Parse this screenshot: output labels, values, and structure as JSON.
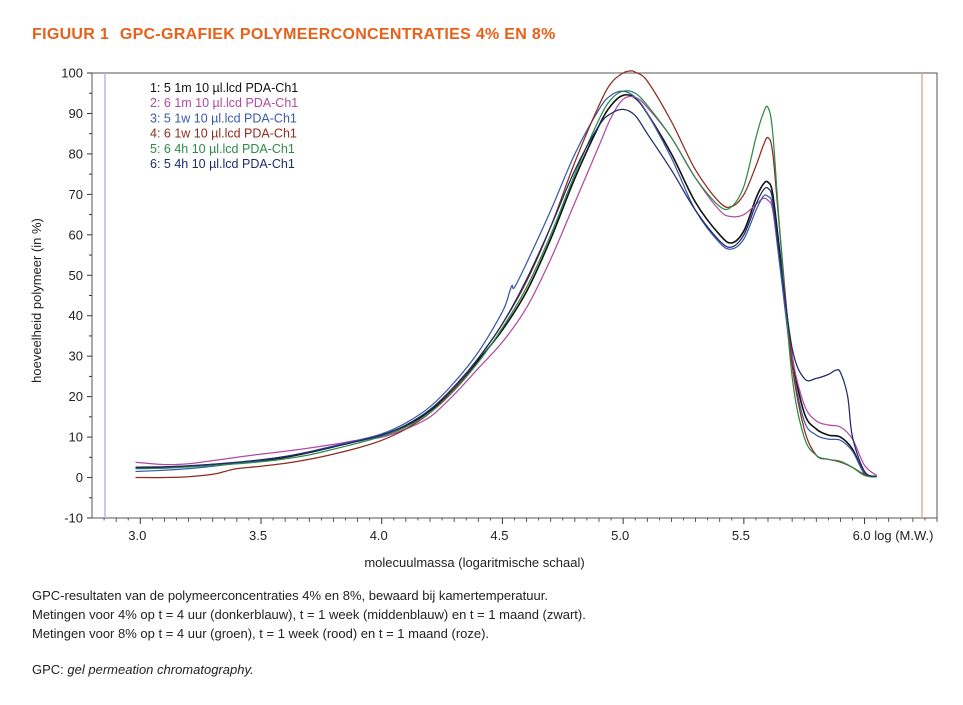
{
  "figure": {
    "number": "FIGUUR 1",
    "title": "GPC-GRAFIEK POLYMEERCONCENTRATIES 4% EN 8%",
    "title_color": "#e8611a"
  },
  "caption": {
    "lines": [
      "GPC-resultaten van de polymeerconcentraties 4% en 8%, bewaard bij kamertemperatuur.",
      "Metingen voor 4% op t = 4 uur (donkerblauw), t = 1 week (middenblauw) en t = 1 maand (zwart).",
      "Metingen voor 8% op t = 4 uur (groen), t = 1 week (rood) en t = 1 maand (roze)."
    ],
    "abbrev_prefix": "GPC: ",
    "abbrev_term": "gel permeation chromatography."
  },
  "chart_data": {
    "type": "line",
    "xlabel": "molecuulmassa (logaritmische schaal)",
    "ylabel": "hoeveelheid polymeer (in %)",
    "xlim": [
      2.8,
      6.3
    ],
    "ylim": [
      -10,
      100
    ],
    "xticks": [
      3.0,
      3.5,
      4.0,
      4.5,
      5.0,
      5.5,
      6.0
    ],
    "xtick_labels": [
      "3.0",
      "3.5",
      "4.0",
      "4.5",
      "5.0",
      "5.5",
      "6.0 log (M.W.)"
    ],
    "yticks": [
      -10,
      0,
      10,
      20,
      30,
      40,
      50,
      60,
      70,
      80,
      90,
      100
    ],
    "ytick_labels": [
      "-10",
      "0",
      "10",
      "20",
      "30",
      "40",
      "50",
      "60",
      "70",
      "80",
      "90",
      "100"
    ],
    "grid": false,
    "legend_position": "top-left",
    "series": [
      {
        "name": "1: 5  1m 10 µl.lcd PDA-Ch1",
        "color": "#111111",
        "x": [
          2.98,
          3.1,
          3.2,
          3.3,
          3.4,
          3.5,
          3.6,
          3.7,
          3.8,
          3.9,
          4.0,
          4.1,
          4.2,
          4.3,
          4.4,
          4.5,
          4.6,
          4.7,
          4.8,
          4.9,
          4.95,
          5.0,
          5.05,
          5.1,
          5.2,
          5.3,
          5.4,
          5.45,
          5.5,
          5.55,
          5.58,
          5.6,
          5.62,
          5.65,
          5.7,
          5.75,
          5.8,
          5.85,
          5.9,
          5.95,
          6.0,
          6.05
        ],
        "y": [
          2.5,
          2.6,
          2.8,
          3.2,
          3.6,
          4.2,
          5.0,
          6.2,
          7.6,
          9.0,
          10.5,
          12.8,
          16.5,
          22.0,
          29.0,
          36.5,
          46.0,
          59.0,
          74.0,
          87.0,
          92.0,
          94.5,
          93.8,
          90.0,
          80.0,
          68.0,
          60.0,
          58.0,
          61.0,
          69.0,
          72.5,
          73.0,
          70.0,
          55.0,
          30.0,
          16.0,
          12.0,
          10.5,
          10.0,
          7.0,
          1.0,
          0.2
        ]
      },
      {
        "name": "2: 6  1m 10 µl.lcd PDA-Ch1",
        "color": "#b04aa3",
        "x": [
          2.98,
          3.1,
          3.2,
          3.3,
          3.4,
          3.5,
          3.6,
          3.7,
          3.8,
          3.9,
          4.0,
          4.1,
          4.2,
          4.3,
          4.4,
          4.5,
          4.6,
          4.7,
          4.8,
          4.9,
          4.95,
          5.0,
          5.05,
          5.1,
          5.2,
          5.3,
          5.4,
          5.45,
          5.5,
          5.55,
          5.58,
          5.6,
          5.62,
          5.65,
          5.7,
          5.75,
          5.8,
          5.85,
          5.9,
          5.95,
          6.0,
          6.05
        ],
        "y": [
          3.8,
          3.2,
          3.4,
          4.2,
          5.0,
          5.8,
          6.5,
          7.3,
          8.2,
          9.2,
          10.0,
          12.0,
          15.0,
          20.5,
          27.0,
          33.5,
          42.0,
          54.0,
          68.0,
          82.0,
          89.0,
          93.5,
          94.0,
          91.5,
          84.0,
          74.0,
          66.0,
          64.5,
          65.0,
          67.5,
          69.0,
          68.5,
          66.0,
          52.0,
          30.0,
          18.0,
          14.0,
          13.0,
          12.5,
          9.5,
          3.0,
          0.5
        ]
      },
      {
        "name": "3: 5  1w 10 µl.lcd PDA-Ch1",
        "color": "#3a5aa8",
        "x": [
          2.98,
          3.1,
          3.2,
          3.3,
          3.4,
          3.5,
          3.6,
          3.7,
          3.8,
          3.9,
          4.0,
          4.1,
          4.2,
          4.3,
          4.4,
          4.5,
          4.53,
          4.54,
          4.55,
          4.6,
          4.7,
          4.8,
          4.9,
          4.95,
          5.0,
          5.05,
          5.1,
          5.2,
          5.3,
          5.4,
          5.45,
          5.5,
          5.55,
          5.58,
          5.6,
          5.62,
          5.65,
          5.7,
          5.75,
          5.8,
          5.85,
          5.9,
          5.95,
          6.0,
          6.05
        ],
        "y": [
          1.5,
          1.8,
          2.2,
          2.8,
          3.5,
          4.3,
          5.2,
          6.4,
          7.8,
          9.2,
          10.8,
          13.5,
          17.5,
          23.5,
          31.0,
          41.0,
          46.0,
          47.5,
          47.0,
          53.0,
          66.0,
          80.0,
          91.0,
          94.5,
          95.5,
          94.0,
          90.0,
          79.0,
          66.0,
          58.0,
          56.5,
          59.0,
          66.0,
          69.5,
          69.5,
          67.0,
          52.0,
          28.0,
          14.0,
          10.5,
          9.5,
          9.2,
          6.5,
          1.0,
          0.2
        ]
      },
      {
        "name": "4: 6  1w 10 µl.lcd PDA-Ch1",
        "color": "#8e2b1e",
        "x": [
          2.98,
          3.1,
          3.2,
          3.3,
          3.35,
          3.4,
          3.5,
          3.6,
          3.7,
          3.8,
          3.9,
          4.0,
          4.1,
          4.2,
          4.3,
          4.4,
          4.5,
          4.6,
          4.7,
          4.8,
          4.9,
          4.95,
          5.0,
          5.03,
          5.05,
          5.1,
          5.2,
          5.3,
          5.4,
          5.45,
          5.5,
          5.55,
          5.58,
          5.6,
          5.62,
          5.65,
          5.7,
          5.75,
          5.8,
          5.85,
          5.9,
          5.95,
          6.0,
          6.05
        ],
        "y": [
          0.0,
          0.0,
          0.2,
          0.8,
          1.5,
          2.2,
          2.8,
          3.5,
          4.5,
          5.8,
          7.3,
          9.2,
          12.0,
          16.0,
          22.0,
          29.5,
          38.0,
          48.5,
          62.0,
          78.0,
          92.0,
          97.5,
          100.0,
          100.5,
          100.2,
          98.0,
          88.0,
          76.0,
          68.0,
          67.0,
          70.0,
          77.0,
          82.0,
          84.0,
          80.0,
          60.0,
          28.0,
          12.0,
          5.5,
          4.5,
          3.8,
          2.5,
          0.8,
          0.2
        ]
      },
      {
        "name": "5: 6  4h  10 µl.lcd PDA-Ch1",
        "color": "#2e8a4a",
        "x": [
          2.98,
          3.1,
          3.2,
          3.3,
          3.4,
          3.5,
          3.6,
          3.7,
          3.8,
          3.9,
          4.0,
          4.1,
          4.2,
          4.3,
          4.4,
          4.5,
          4.6,
          4.7,
          4.8,
          4.9,
          4.95,
          5.0,
          5.05,
          5.1,
          5.2,
          5.3,
          5.4,
          5.45,
          5.5,
          5.55,
          5.58,
          5.6,
          5.62,
          5.65,
          5.7,
          5.75,
          5.8,
          5.85,
          5.9,
          5.95,
          6.0,
          6.05
        ],
        "y": [
          2.2,
          2.3,
          2.6,
          3.0,
          3.4,
          3.9,
          4.6,
          5.6,
          7.0,
          8.5,
          10.2,
          12.5,
          16.0,
          21.5,
          28.5,
          37.0,
          47.0,
          60.0,
          75.0,
          88.5,
          93.5,
          95.5,
          95.0,
          92.0,
          84.0,
          74.0,
          67.0,
          67.0,
          72.0,
          84.0,
          90.0,
          91.5,
          85.0,
          60.0,
          25.0,
          10.0,
          5.5,
          4.5,
          4.0,
          2.5,
          0.5,
          0.2
        ]
      },
      {
        "name": "6: 5  4h  10 µl.lcd PDA-Ch1",
        "color": "#1f2a6b",
        "x": [
          2.98,
          3.1,
          3.2,
          3.3,
          3.4,
          3.5,
          3.6,
          3.7,
          3.8,
          3.9,
          4.0,
          4.1,
          4.2,
          4.3,
          4.4,
          4.5,
          4.6,
          4.7,
          4.8,
          4.9,
          4.95,
          5.0,
          5.05,
          5.1,
          5.2,
          5.3,
          5.4,
          5.45,
          5.5,
          5.55,
          5.58,
          5.6,
          5.62,
          5.65,
          5.7,
          5.75,
          5.8,
          5.85,
          5.88,
          5.9,
          5.93,
          5.95,
          6.0,
          6.05
        ],
        "y": [
          2.4,
          2.6,
          2.9,
          3.3,
          3.8,
          4.4,
          5.2,
          6.3,
          7.6,
          9.0,
          10.5,
          13.0,
          16.8,
          22.5,
          29.5,
          38.0,
          49.0,
          62.0,
          76.0,
          87.0,
          90.0,
          91.0,
          89.5,
          85.0,
          76.0,
          66.0,
          58.5,
          57.0,
          60.0,
          67.5,
          71.0,
          71.5,
          68.5,
          54.0,
          32.0,
          24.5,
          24.5,
          25.5,
          26.5,
          26.0,
          20.0,
          10.0,
          1.5,
          0.3
        ]
      }
    ]
  }
}
